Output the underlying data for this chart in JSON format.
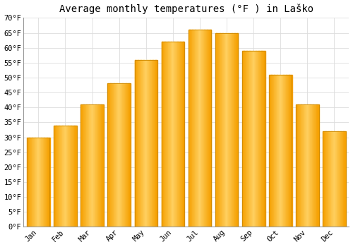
{
  "title": "Average monthly temperatures (°F ) in Laško",
  "months": [
    "Jan",
    "Feb",
    "Mar",
    "Apr",
    "May",
    "Jun",
    "Jul",
    "Aug",
    "Sep",
    "Oct",
    "Nov",
    "Dec"
  ],
  "values": [
    30,
    34,
    41,
    48,
    56,
    62,
    66,
    65,
    59,
    51,
    41,
    32
  ],
  "bar_color_light": "#FFD060",
  "bar_color_dark": "#F5A000",
  "bar_edge_color": "#CC8800",
  "background_color": "#FFFFFF",
  "grid_color": "#DDDDDD",
  "ylim": [
    0,
    70
  ],
  "yticks": [
    0,
    5,
    10,
    15,
    20,
    25,
    30,
    35,
    40,
    45,
    50,
    55,
    60,
    65,
    70
  ],
  "title_fontsize": 10,
  "tick_fontsize": 7.5,
  "tick_font_family": "monospace",
  "bar_width": 0.85
}
